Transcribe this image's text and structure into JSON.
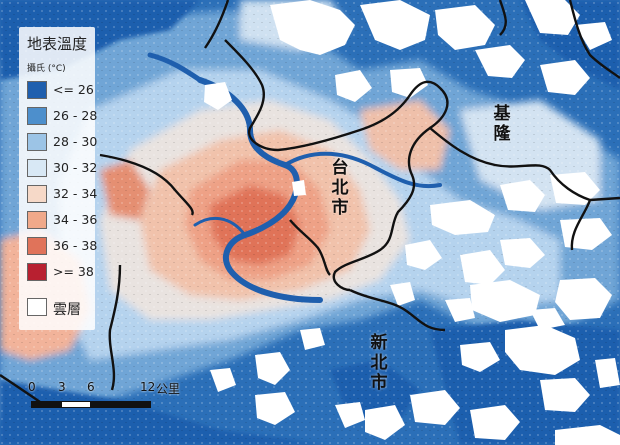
{
  "map": {
    "colors": {
      "deep_blue": "#1f5fae",
      "mid_blue": "#4d8fcc",
      "light_blue": "#9cc4e6",
      "pale_blue": "#d8e8f5",
      "pale_orange": "#f6d9c8",
      "orange": "#f0a98a",
      "red_orange": "#e0735a",
      "dark_red": "#b82030",
      "cloud": "#ffffff",
      "boundary": "#111111"
    }
  },
  "legend": {
    "title": "地表溫度",
    "unit": "攝氏 (°C)",
    "items": [
      {
        "label": "<= 26",
        "color": "#1f5fae"
      },
      {
        "label": "26 - 28",
        "color": "#4d8fcc"
      },
      {
        "label": "28 - 30",
        "color": "#9cc4e6"
      },
      {
        "label": "30 - 32",
        "color": "#d8e8f5"
      },
      {
        "label": "32 - 34",
        "color": "#f6d9c8"
      },
      {
        "label": "34 - 36",
        "color": "#f0a98a"
      },
      {
        "label": "36 - 38",
        "color": "#e0735a"
      },
      {
        "label": ">= 38",
        "color": "#b82030"
      }
    ],
    "cloud_label": "雲層"
  },
  "labels": {
    "keelung": "基隆",
    "taipei": "台北市",
    "new_taipei": "新北市"
  },
  "scale": {
    "ticks": [
      "0",
      "3",
      "6",
      "12"
    ],
    "unit": "公里"
  }
}
